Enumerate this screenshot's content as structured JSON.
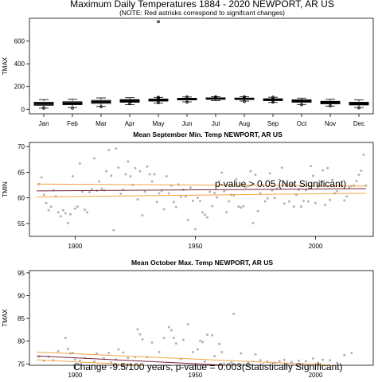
{
  "figure": {
    "title": "Maximum Daily Temperatures 1884 - 2020 NEWPORT, AR US",
    "subtitle": "(NOTE: Red astrisks correspond to signifcant changes)"
  },
  "chart_data": [
    {
      "type": "box",
      "title": "",
      "ylabel": "TMAX",
      "ylim": [
        -40,
        800
      ],
      "yticks": [
        0,
        200,
        400,
        600
      ],
      "categories": [
        "Jan",
        "Feb",
        "Mar",
        "Apr",
        "May",
        "Jun",
        "Jul",
        "Aug",
        "Sep",
        "Oct",
        "Nov",
        "Dec"
      ],
      "boxes": [
        {
          "min": 10,
          "q1": 35,
          "median": 48,
          "q3": 62,
          "max": 85,
          "outliers": [
            10
          ]
        },
        {
          "min": 15,
          "q1": 40,
          "median": 52,
          "q3": 66,
          "max": 88,
          "outliers": [
            10
          ]
        },
        {
          "min": 25,
          "q1": 52,
          "median": 65,
          "q3": 78,
          "max": 100,
          "outliers": [
            22
          ]
        },
        {
          "min": 40,
          "q1": 62,
          "median": 74,
          "q3": 85,
          "max": 102,
          "outliers": [
            48
          ]
        },
        {
          "min": 55,
          "q1": 72,
          "median": 82,
          "q3": 90,
          "max": 105,
          "outliers": [
            770,
            105,
            100,
            95,
            58
          ]
        },
        {
          "min": 65,
          "q1": 82,
          "median": 90,
          "q3": 96,
          "max": 108,
          "outliers": [
            108,
            62
          ]
        },
        {
          "min": 75,
          "q1": 88,
          "median": 94,
          "q3": 100,
          "max": 110,
          "outliers": [
            110,
            103,
            100
          ]
        },
        {
          "min": 72,
          "q1": 86,
          "median": 92,
          "q3": 98,
          "max": 110,
          "outliers": [
            110,
            100,
            68
          ]
        },
        {
          "min": 60,
          "q1": 76,
          "median": 85,
          "q3": 92,
          "max": 106,
          "outliers": [
            106,
            62
          ]
        },
        {
          "min": 42,
          "q1": 62,
          "median": 74,
          "q3": 83,
          "max": 98,
          "outliers": [
            40
          ]
        },
        {
          "min": 28,
          "q1": 48,
          "median": 60,
          "q3": 70,
          "max": 88,
          "outliers": [
            30
          ]
        },
        {
          "min": 15,
          "q1": 38,
          "median": 50,
          "q3": 62,
          "max": 82,
          "outliers": [
            12
          ]
        }
      ]
    },
    {
      "type": "scatter",
      "title": "Mean September Min. Temp NEWPORT, AR US",
      "ylabel": "TMIN",
      "xlim": [
        1881,
        2024
      ],
      "ylim": [
        52.5,
        70.8
      ],
      "xticks": [
        1900,
        1950,
        2000
      ],
      "yticks": [
        55,
        60,
        65,
        70
      ],
      "annotation": "p-value > 0.05 (Not Significant)",
      "points": [
        [
          1885,
          62.7
        ],
        [
          1886,
          64.0
        ],
        [
          1887,
          60.6
        ],
        [
          1888,
          59.0
        ],
        [
          1889,
          57.6
        ],
        [
          1890,
          58.3
        ],
        [
          1891,
          61.5
        ],
        [
          1892,
          60.3
        ],
        [
          1893,
          57.2
        ],
        [
          1894,
          56.4
        ],
        [
          1895,
          57.6
        ],
        [
          1896,
          57.0
        ],
        [
          1897,
          55.1
        ],
        [
          1898,
          56.8
        ],
        [
          1899,
          64.2
        ],
        [
          1900,
          57.9
        ],
        [
          1901,
          58.3
        ],
        [
          1902,
          66.7
        ],
        [
          1903,
          61.2
        ],
        [
          1904,
          57.7
        ],
        [
          1905,
          57.2
        ],
        [
          1906,
          61.1
        ],
        [
          1907,
          61.7
        ],
        [
          1908,
          67.7
        ],
        [
          1909,
          61.4
        ],
        [
          1910,
          63.2
        ],
        [
          1911,
          61.8
        ],
        [
          1912,
          61.5
        ],
        [
          1913,
          65.2
        ],
        [
          1914,
          69.3
        ],
        [
          1915,
          64.3
        ],
        [
          1916,
          53.7
        ],
        [
          1917,
          69.6
        ],
        [
          1918,
          65.9
        ],
        [
          1919,
          60.8
        ],
        [
          1920,
          61.6
        ],
        [
          1921,
          64.6
        ],
        [
          1922,
          67.1
        ],
        [
          1923,
          64.2
        ],
        [
          1924,
          62.5
        ],
        [
          1925,
          65.8
        ],
        [
          1926,
          59.7
        ],
        [
          1927,
          65.2
        ],
        [
          1928,
          56.6
        ],
        [
          1929,
          61.2
        ],
        [
          1930,
          66.1
        ],
        [
          1931,
          64.6
        ],
        [
          1932,
          63.2
        ],
        [
          1933,
          64.6
        ],
        [
          1934,
          59.2
        ],
        [
          1935,
          60.9
        ],
        [
          1936,
          61.4
        ],
        [
          1937,
          57.8
        ],
        [
          1938,
          64.2
        ],
        [
          1939,
          60.9
        ],
        [
          1940,
          62.4
        ],
        [
          1941,
          59.2
        ],
        [
          1942,
          58.2
        ],
        [
          1943,
          62.6
        ],
        [
          1944,
          60.2
        ],
        [
          1945,
          61.6
        ],
        [
          1946,
          60.3
        ],
        [
          1947,
          55.7
        ],
        [
          1948,
          62.0
        ],
        [
          1949,
          59.4
        ],
        [
          1950,
          53.9
        ],
        [
          1951,
          60.0
        ],
        [
          1952,
          59.4
        ],
        [
          1953,
          57.2
        ],
        [
          1954,
          56.7
        ],
        [
          1955,
          56.2
        ],
        [
          1956,
          61.2
        ],
        [
          1957,
          58.4
        ],
        [
          1958,
          61.0
        ],
        [
          1959,
          60.1
        ],
        [
          1960,
          63.2
        ],
        [
          1961,
          64.9
        ],
        [
          1962,
          61.3
        ],
        [
          1963,
          57.2
        ],
        [
          1964,
          59.3
        ],
        [
          1965,
          60.6
        ],
        [
          1966,
          60.5
        ],
        [
          1967,
          63.6
        ],
        [
          1968,
          58.3
        ],
        [
          1969,
          58.1
        ],
        [
          1970,
          58.4
        ],
        [
          1971,
          62.1
        ],
        [
          1972,
          62.3
        ],
        [
          1973,
          65.2
        ],
        [
          1974,
          55.1
        ],
        [
          1975,
          64.5
        ],
        [
          1976,
          57.4
        ],
        [
          1977,
          60.9
        ],
        [
          1978,
          62.5
        ],
        [
          1979,
          59.3
        ],
        [
          1980,
          59.9
        ],
        [
          1981,
          64.8
        ],
        [
          1982,
          61.5
        ],
        [
          1983,
          60.0
        ],
        [
          1984,
          61.8
        ],
        [
          1985,
          63.5
        ],
        [
          1986,
          65.9
        ],
        [
          1987,
          58.9
        ],
        [
          1988,
          62.8
        ],
        [
          1989,
          59.3
        ],
        [
          1990,
          62.6
        ],
        [
          1991,
          58.3
        ],
        [
          1992,
          60.6
        ],
        [
          1993,
          61.6
        ],
        [
          1994,
          58.3
        ],
        [
          1995,
          59.4
        ],
        [
          1996,
          61.5
        ],
        [
          1997,
          59.3
        ],
        [
          1998,
          66.2
        ],
        [
          1999,
          64.3
        ],
        [
          2000,
          59.0
        ],
        [
          2001,
          62.1
        ],
        [
          2002,
          62.4
        ],
        [
          2003,
          65.4
        ],
        [
          2004,
          58.6
        ],
        [
          2005,
          65.8
        ],
        [
          2006,
          59.6
        ],
        [
          2007,
          63.5
        ],
        [
          2008,
          60.9
        ],
        [
          2009,
          61.3
        ],
        [
          2010,
          62.4
        ],
        [
          2011,
          62.4
        ],
        [
          2012,
          59.5
        ],
        [
          2013,
          60.3
        ],
        [
          2014,
          62.1
        ],
        [
          2015,
          62.3
        ],
        [
          2016,
          62.4
        ],
        [
          2017,
          63.3
        ],
        [
          2018,
          64.5
        ],
        [
          2019,
          65.3
        ],
        [
          2020,
          68.4
        ],
        [
          2021,
          62.4
        ]
      ],
      "trend": {
        "x": [
          1884,
          2021
        ],
        "y": [
          61.35,
          61.8
        ]
      },
      "bands": [
        {
          "x": [
            1884,
            2021
          ],
          "y": [
            62.7,
            62.3
          ]
        },
        {
          "x": [
            1884,
            2021
          ],
          "y": [
            60.2,
            60.9
          ]
        }
      ]
    },
    {
      "type": "scatter",
      "title": "Mean October Max. Temp NEWPORT, AR US",
      "ylabel": "TMAX",
      "xlim": [
        1881,
        2024
      ],
      "ylim": [
        74.7,
        95.5
      ],
      "xticks": [
        1900,
        1950,
        2000
      ],
      "yticks": [
        75,
        80,
        85,
        90,
        95
      ],
      "annotation": "Change -9.5/100 years, p-value = 0.003(Statistically Significant)",
      "points": [
        [
          1885,
          76.6
        ],
        [
          1887,
          75.7
        ],
        [
          1889,
          76.6
        ],
        [
          1891,
          75.8
        ],
        [
          1893,
          77.8
        ],
        [
          1896,
          80.7
        ],
        [
          1897,
          78.3
        ],
        [
          1898,
          77.3
        ],
        [
          1899,
          77.4
        ],
        [
          1900,
          76.0
        ],
        [
          1902,
          75.7
        ],
        [
          1904,
          76.3
        ],
        [
          1908,
          75.5
        ],
        [
          1909,
          77.3
        ],
        [
          1912,
          76.2
        ],
        [
          1914,
          77.4
        ],
        [
          1915,
          75.3
        ],
        [
          1917,
          76.0
        ],
        [
          1918,
          78.2
        ],
        [
          1920,
          77.5
        ],
        [
          1922,
          76.3
        ],
        [
          1925,
          76.5
        ],
        [
          1926,
          82.6
        ],
        [
          1927,
          81.5
        ],
        [
          1928,
          80.4
        ],
        [
          1930,
          76.5
        ],
        [
          1932,
          79.7
        ],
        [
          1935,
          77.6
        ],
        [
          1937,
          80.7
        ],
        [
          1939,
          83.1
        ],
        [
          1940,
          82.4
        ],
        [
          1941,
          80.7
        ],
        [
          1942,
          79.5
        ],
        [
          1944,
          76.1
        ],
        [
          1945,
          80.3
        ],
        [
          1947,
          83.7
        ],
        [
          1949,
          77.6
        ],
        [
          1951,
          78.2
        ],
        [
          1952,
          80.1
        ],
        [
          1953,
          79.8
        ],
        [
          1954,
          75.5
        ],
        [
          1955,
          81.4
        ],
        [
          1957,
          81.3
        ],
        [
          1958,
          76.7
        ],
        [
          1960,
          79.4
        ],
        [
          1961,
          77.6
        ],
        [
          1962,
          75.1
        ],
        [
          1965,
          75.3
        ],
        [
          1966,
          86.0
        ],
        [
          1969,
          77.3
        ],
        [
          1972,
          75.2
        ],
        [
          1975,
          77.1
        ],
        [
          1977,
          75.8
        ],
        [
          1980,
          75.5
        ],
        [
          1983,
          75.2
        ],
        [
          1985,
          75.6
        ],
        [
          1987,
          75.9
        ],
        [
          1990,
          75.4
        ],
        [
          1993,
          75.7
        ],
        [
          1996,
          75.6
        ],
        [
          1999,
          76.2
        ],
        [
          2001,
          75.3
        ],
        [
          2003,
          75.9
        ],
        [
          2006,
          75.8
        ],
        [
          2009,
          75.2
        ],
        [
          2012,
          76.9
        ],
        [
          2015,
          77.4
        ]
      ],
      "trend": {
        "x": [
          1884,
          2021
        ],
        "y": [
          76.75,
          73.2
        ]
      },
      "bands": [
        {
          "x": [
            1884,
            2021
          ],
          "y": [
            77.6,
            74.4
          ]
        },
        {
          "x": [
            1884,
            2021
          ],
          "y": [
            75.9,
            72.2
          ]
        }
      ]
    }
  ]
}
